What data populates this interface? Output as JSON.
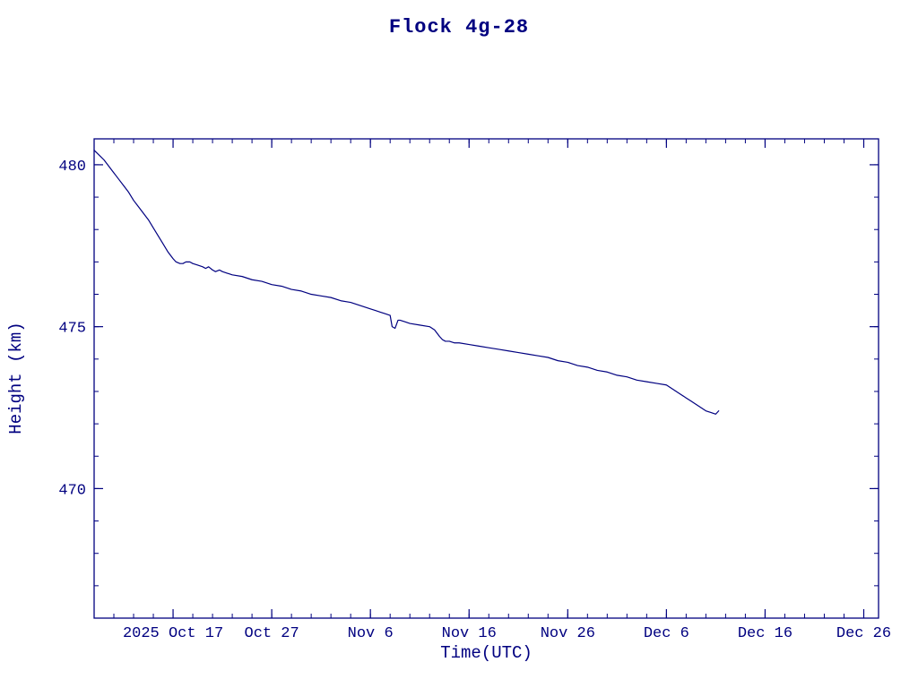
{
  "title": "Flock 4g-28",
  "colors": {
    "accent": "#000080",
    "background": "#ffffff",
    "line": "#000080"
  },
  "chart_data": {
    "type": "line",
    "title": "Flock 4g-28",
    "xlabel": "Time(UTC)",
    "ylabel": "Height (km)",
    "x_unit": "days since 2025-10-09 (UTC)",
    "xlim": [
      0,
      79.5
    ],
    "ylim": [
      466.0,
      480.8
    ],
    "grid": false,
    "legend": false,
    "x_ticks": [
      {
        "value": 8,
        "label": "2025 Oct 17"
      },
      {
        "value": 18,
        "label": "Oct 27"
      },
      {
        "value": 28,
        "label": "Nov 6"
      },
      {
        "value": 38,
        "label": "Nov 16"
      },
      {
        "value": 48,
        "label": "Nov 26"
      },
      {
        "value": 58,
        "label": "Dec 6"
      },
      {
        "value": 68,
        "label": "Dec 16"
      },
      {
        "value": 78,
        "label": "Dec 26"
      }
    ],
    "x_minor_step": 2,
    "y_ticks": [
      {
        "value": 470,
        "label": "470"
      },
      {
        "value": 475,
        "label": "475"
      },
      {
        "value": 480,
        "label": "480"
      }
    ],
    "y_minor_step": 1,
    "series": [
      {
        "name": "height",
        "color": "#000080",
        "points": [
          [
            0,
            480.45
          ],
          [
            0.5,
            480.3
          ],
          [
            1,
            480.15
          ],
          [
            1.5,
            479.95
          ],
          [
            2,
            479.75
          ],
          [
            2.5,
            479.55
          ],
          [
            3,
            479.35
          ],
          [
            3.5,
            479.15
          ],
          [
            4,
            478.9
          ],
          [
            4.5,
            478.7
          ],
          [
            5,
            478.5
          ],
          [
            5.5,
            478.3
          ],
          [
            6,
            478.05
          ],
          [
            6.5,
            477.8
          ],
          [
            7,
            477.55
          ],
          [
            7.5,
            477.3
          ],
          [
            8,
            477.1
          ],
          [
            8.3,
            477.0
          ],
          [
            8.7,
            476.95
          ],
          [
            9,
            476.95
          ],
          [
            9.3,
            477.0
          ],
          [
            9.7,
            477.0
          ],
          [
            10,
            476.95
          ],
          [
            10.5,
            476.9
          ],
          [
            11,
            476.85
          ],
          [
            11.3,
            476.8
          ],
          [
            11.6,
            476.85
          ],
          [
            12,
            476.75
          ],
          [
            12.3,
            476.7
          ],
          [
            12.7,
            476.75
          ],
          [
            13,
            476.7
          ],
          [
            13.5,
            476.65
          ],
          [
            14,
            476.6
          ],
          [
            15,
            476.55
          ],
          [
            16,
            476.45
          ],
          [
            17,
            476.4
          ],
          [
            18,
            476.3
          ],
          [
            19,
            476.25
          ],
          [
            20,
            476.15
          ],
          [
            21,
            476.1
          ],
          [
            22,
            476.0
          ],
          [
            23,
            475.95
          ],
          [
            24,
            475.9
          ],
          [
            25,
            475.8
          ],
          [
            26,
            475.75
          ],
          [
            27,
            475.65
          ],
          [
            28,
            475.55
          ],
          [
            28.5,
            475.5
          ],
          [
            29,
            475.45
          ],
          [
            29.5,
            475.4
          ],
          [
            30,
            475.35
          ],
          [
            30.2,
            475.0
          ],
          [
            30.5,
            474.95
          ],
          [
            30.8,
            475.2
          ],
          [
            31,
            475.2
          ],
          [
            31.5,
            475.15
          ],
          [
            32,
            475.1
          ],
          [
            33,
            475.05
          ],
          [
            34,
            475.0
          ],
          [
            34.5,
            474.9
          ],
          [
            35,
            474.7
          ],
          [
            35.3,
            474.6
          ],
          [
            35.6,
            474.55
          ],
          [
            36,
            474.55
          ],
          [
            36.5,
            474.5
          ],
          [
            37,
            474.5
          ],
          [
            38,
            474.45
          ],
          [
            39,
            474.4
          ],
          [
            40,
            474.35
          ],
          [
            41,
            474.3
          ],
          [
            42,
            474.25
          ],
          [
            43,
            474.2
          ],
          [
            44,
            474.15
          ],
          [
            45,
            474.1
          ],
          [
            46,
            474.05
          ],
          [
            47,
            473.95
          ],
          [
            48,
            473.9
          ],
          [
            49,
            473.8
          ],
          [
            50,
            473.75
          ],
          [
            51,
            473.65
          ],
          [
            52,
            473.6
          ],
          [
            53,
            473.5
          ],
          [
            54,
            473.45
          ],
          [
            55,
            473.35
          ],
          [
            56,
            473.3
          ],
          [
            57,
            473.25
          ],
          [
            58,
            473.2
          ],
          [
            58.5,
            473.1
          ],
          [
            59,
            473.0
          ],
          [
            59.5,
            472.9
          ],
          [
            60,
            472.8
          ],
          [
            60.5,
            472.7
          ],
          [
            61,
            472.6
          ],
          [
            61.5,
            472.5
          ],
          [
            62,
            472.4
          ],
          [
            62.5,
            472.35
          ],
          [
            63,
            472.3
          ],
          [
            63.3,
            472.4
          ]
        ]
      }
    ]
  }
}
